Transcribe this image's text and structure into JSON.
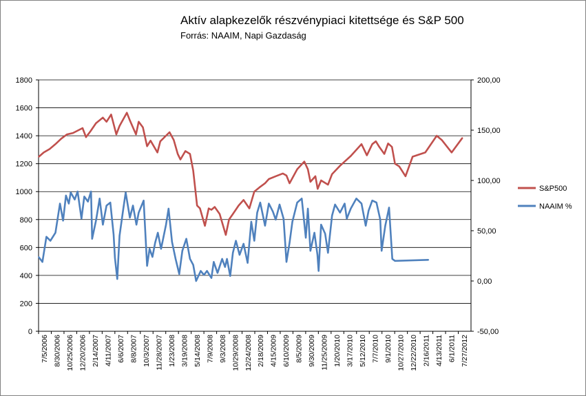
{
  "title": "Aktív alapkezelők részvénypiaci kitettsége és S&P 500",
  "subtitle": "Forrás: NAAIM, Napi Gazdaság",
  "colors": {
    "sp500": "#c0504d",
    "naaim": "#4f81bd",
    "grid": "#000000"
  },
  "chart_data": {
    "type": "line",
    "title": "Aktív alapkezelők részvénypiaci kitettsége és S&P 500",
    "subtitle": "Forrás: NAAIM, Napi Gazdaság",
    "grid": "horizontal major gridlines on",
    "legend": "right",
    "y_left": {
      "ylim": [
        0,
        1800
      ],
      "ticks": [
        "0",
        "200",
        "400",
        "600",
        "800",
        "1000",
        "1200",
        "1400",
        "1600",
        "1800"
      ]
    },
    "y_right": {
      "ylim": [
        -50,
        200
      ],
      "ticks": [
        "-50,00",
        "0,00",
        "50,00",
        "100,00",
        "150,00",
        "200,00"
      ]
    },
    "x_ticks": [
      "7/5/2006",
      "8/30/2006",
      "10/25/2006",
      "12/20/2006",
      "2/14/2007",
      "4/11/2007",
      "6/6/2007",
      "8/8/2007",
      "10/3/2007",
      "11/28/2007",
      "1/23/2008",
      "3/19/2008",
      "5/14/2008",
      "7/9/2008",
      "9/3/2008",
      "10/29/2008",
      "12/24/2008",
      "2/18/2009",
      "4/15/2009",
      "6/10/2009",
      "8/5/2009",
      "9/30/2009",
      "11/25/2009",
      "1/20/2010",
      "3/17/2010",
      "5/12/2010",
      "7/7/2010",
      "9/1/2010",
      "10/27/2010",
      "12/22/2010",
      "2/16/2011",
      "4/13/2011",
      "6/1/2011",
      "7/27/2012"
    ],
    "series": [
      {
        "name": "S&P500",
        "axis": "left",
        "points": [
          [
            "2006-07-05",
            1248
          ],
          [
            "2006-08-01",
            1280
          ],
          [
            "2006-09-01",
            1305
          ],
          [
            "2006-10-01",
            1340
          ],
          [
            "2006-11-01",
            1380
          ],
          [
            "2006-12-01",
            1410
          ],
          [
            "2007-01-01",
            1420
          ],
          [
            "2007-02-20",
            1455
          ],
          [
            "2007-03-10",
            1390
          ],
          [
            "2007-04-01",
            1430
          ],
          [
            "2007-05-01",
            1490
          ],
          [
            "2007-06-06",
            1530
          ],
          [
            "2007-06-25",
            1500
          ],
          [
            "2007-07-19",
            1552
          ],
          [
            "2007-08-15",
            1410
          ],
          [
            "2007-09-01",
            1470
          ],
          [
            "2007-10-09",
            1565
          ],
          [
            "2007-10-25",
            1510
          ],
          [
            "2007-11-26",
            1410
          ],
          [
            "2007-12-10",
            1500
          ],
          [
            "2008-01-01",
            1460
          ],
          [
            "2008-01-23",
            1325
          ],
          [
            "2008-02-10",
            1365
          ],
          [
            "2008-03-17",
            1280
          ],
          [
            "2008-04-01",
            1360
          ],
          [
            "2008-05-19",
            1425
          ],
          [
            "2008-06-10",
            1370
          ],
          [
            "2008-07-01",
            1270
          ],
          [
            "2008-07-15",
            1230
          ],
          [
            "2008-08-10",
            1290
          ],
          [
            "2008-09-03",
            1270
          ],
          [
            "2008-09-20",
            1150
          ],
          [
            "2008-10-10",
            900
          ],
          [
            "2008-10-25",
            880
          ],
          [
            "2008-11-20",
            755
          ],
          [
            "2008-12-10",
            880
          ],
          [
            "2008-12-24",
            870
          ],
          [
            "2009-01-10",
            890
          ],
          [
            "2009-02-05",
            840
          ],
          [
            "2009-03-09",
            690
          ],
          [
            "2009-03-26",
            800
          ],
          [
            "2009-04-15",
            840
          ],
          [
            "2009-05-15",
            900
          ],
          [
            "2009-06-10",
            940
          ],
          [
            "2009-07-10",
            880
          ],
          [
            "2009-08-05",
            1000
          ],
          [
            "2009-09-01",
            1030
          ],
          [
            "2009-09-30",
            1060
          ],
          [
            "2009-10-20",
            1090
          ],
          [
            "2009-11-25",
            1110
          ],
          [
            "2010-01-01",
            1130
          ],
          [
            "2010-01-20",
            1115
          ],
          [
            "2010-02-05",
            1060
          ],
          [
            "2010-03-17",
            1160
          ],
          [
            "2010-04-23",
            1215
          ],
          [
            "2010-05-12",
            1160
          ],
          [
            "2010-05-25",
            1070
          ],
          [
            "2010-06-20",
            1110
          ],
          [
            "2010-07-02",
            1020
          ],
          [
            "2010-07-20",
            1080
          ],
          [
            "2010-08-25",
            1050
          ],
          [
            "2010-09-15",
            1125
          ],
          [
            "2010-10-27",
            1185
          ],
          [
            "2010-12-22",
            1255
          ],
          [
            "2011-02-16",
            1340
          ],
          [
            "2011-03-16",
            1260
          ],
          [
            "2011-04-13",
            1340
          ],
          [
            "2011-05-02",
            1360
          ],
          [
            "2011-05-20",
            1320
          ],
          [
            "2011-06-15",
            1270
          ],
          [
            "2011-07-05",
            1345
          ],
          [
            "2011-07-25",
            1320
          ],
          [
            "2011-08-10",
            1200
          ],
          [
            "2011-09-01",
            1180
          ],
          [
            "2011-10-04",
            1110
          ],
          [
            "2011-11-10",
            1250
          ],
          [
            "2012-01-15",
            1280
          ],
          [
            "2012-03-15",
            1400
          ],
          [
            "2012-04-10",
            1370
          ],
          [
            "2012-06-01",
            1280
          ],
          [
            "2012-07-27",
            1385
          ]
        ]
      },
      {
        "name": "NAAIM %",
        "axis": "right",
        "points": [
          [
            "2006-07-05",
            24
          ],
          [
            "2006-07-25",
            19
          ],
          [
            "2006-08-15",
            44
          ],
          [
            "2006-09-05",
            40
          ],
          [
            "2006-10-01",
            48
          ],
          [
            "2006-10-25",
            77
          ],
          [
            "2006-11-10",
            60
          ],
          [
            "2006-11-25",
            85
          ],
          [
            "2006-12-10",
            77
          ],
          [
            "2006-12-20",
            88
          ],
          [
            "2007-01-10",
            81
          ],
          [
            "2007-01-25",
            89
          ],
          [
            "2007-02-14",
            62
          ],
          [
            "2007-03-01",
            84
          ],
          [
            "2007-03-20",
            79
          ],
          [
            "2007-04-05",
            89
          ],
          [
            "2007-04-11",
            42
          ],
          [
            "2007-05-01",
            60
          ],
          [
            "2007-05-20",
            82
          ],
          [
            "2007-06-06",
            56
          ],
          [
            "2007-06-25",
            75
          ],
          [
            "2007-07-15",
            78
          ],
          [
            "2007-08-01",
            46
          ],
          [
            "2007-08-08",
            23
          ],
          [
            "2007-08-20",
            2
          ],
          [
            "2007-09-01",
            45
          ],
          [
            "2007-09-20",
            71
          ],
          [
            "2007-10-03",
            88
          ],
          [
            "2007-10-25",
            63
          ],
          [
            "2007-11-10",
            75
          ],
          [
            "2007-11-28",
            56
          ],
          [
            "2007-12-10",
            68
          ],
          [
            "2008-01-05",
            80
          ],
          [
            "2008-01-23",
            15
          ],
          [
            "2008-02-05",
            32
          ],
          [
            "2008-02-20",
            24
          ],
          [
            "2008-03-05",
            38
          ],
          [
            "2008-03-19",
            48
          ],
          [
            "2008-04-05",
            32
          ],
          [
            "2008-05-01",
            56
          ],
          [
            "2008-05-14",
            72
          ],
          [
            "2008-06-01",
            39
          ],
          [
            "2008-06-20",
            22
          ],
          [
            "2008-07-09",
            7
          ],
          [
            "2008-07-25",
            30
          ],
          [
            "2008-08-15",
            42
          ],
          [
            "2008-09-03",
            22
          ],
          [
            "2008-09-20",
            16
          ],
          [
            "2008-10-05",
            0
          ],
          [
            "2008-10-29",
            10
          ],
          [
            "2008-11-15",
            6
          ],
          [
            "2008-12-01",
            10
          ],
          [
            "2008-12-24",
            3
          ],
          [
            "2009-01-05",
            19
          ],
          [
            "2009-01-25",
            8
          ],
          [
            "2009-02-18",
            22
          ],
          [
            "2009-03-05",
            14
          ],
          [
            "2009-03-15",
            22
          ],
          [
            "2009-04-01",
            5
          ],
          [
            "2009-04-15",
            28
          ],
          [
            "2009-05-01",
            40
          ],
          [
            "2009-05-20",
            26
          ],
          [
            "2009-06-10",
            37
          ],
          [
            "2009-07-01",
            18
          ],
          [
            "2009-07-20",
            59
          ],
          [
            "2009-08-05",
            40
          ],
          [
            "2009-08-20",
            68
          ],
          [
            "2009-09-05",
            78
          ],
          [
            "2009-09-30",
            55
          ],
          [
            "2009-10-20",
            77
          ],
          [
            "2009-11-10",
            69
          ],
          [
            "2009-11-25",
            61
          ],
          [
            "2009-12-15",
            76
          ],
          [
            "2010-01-05",
            62
          ],
          [
            "2010-01-20",
            19
          ],
          [
            "2010-02-05",
            38
          ],
          [
            "2010-02-20",
            59
          ],
          [
            "2010-03-17",
            78
          ],
          [
            "2010-04-10",
            82
          ],
          [
            "2010-05-01",
            43
          ],
          [
            "2010-05-12",
            72
          ],
          [
            "2010-05-25",
            30
          ],
          [
            "2010-06-15",
            48
          ],
          [
            "2010-07-01",
            26
          ],
          [
            "2010-07-07",
            10
          ],
          [
            "2010-07-20",
            56
          ],
          [
            "2010-08-10",
            47
          ],
          [
            "2010-08-25",
            28
          ],
          [
            "2010-09-15",
            65
          ],
          [
            "2010-10-01",
            76
          ],
          [
            "2010-10-27",
            68
          ],
          [
            "2010-11-20",
            77
          ],
          [
            "2010-12-01",
            62
          ],
          [
            "2010-12-22",
            72
          ],
          [
            "2011-01-20",
            82
          ],
          [
            "2011-02-16",
            77
          ],
          [
            "2011-03-10",
            55
          ],
          [
            "2011-03-25",
            70
          ],
          [
            "2011-04-13",
            80
          ],
          [
            "2011-05-05",
            78
          ],
          [
            "2011-05-25",
            61
          ],
          [
            "2011-06-01",
            30
          ],
          [
            "2011-06-20",
            55
          ],
          [
            "2011-07-10",
            73
          ],
          [
            "2011-07-27",
            22
          ],
          [
            "2011-08-10",
            20
          ],
          [
            "2012-02-01",
            21
          ]
        ]
      }
    ]
  },
  "legend": [
    {
      "label": "S&P500",
      "color": "#c0504d"
    },
    {
      "label": "NAAIM %",
      "color": "#4f81bd"
    }
  ]
}
